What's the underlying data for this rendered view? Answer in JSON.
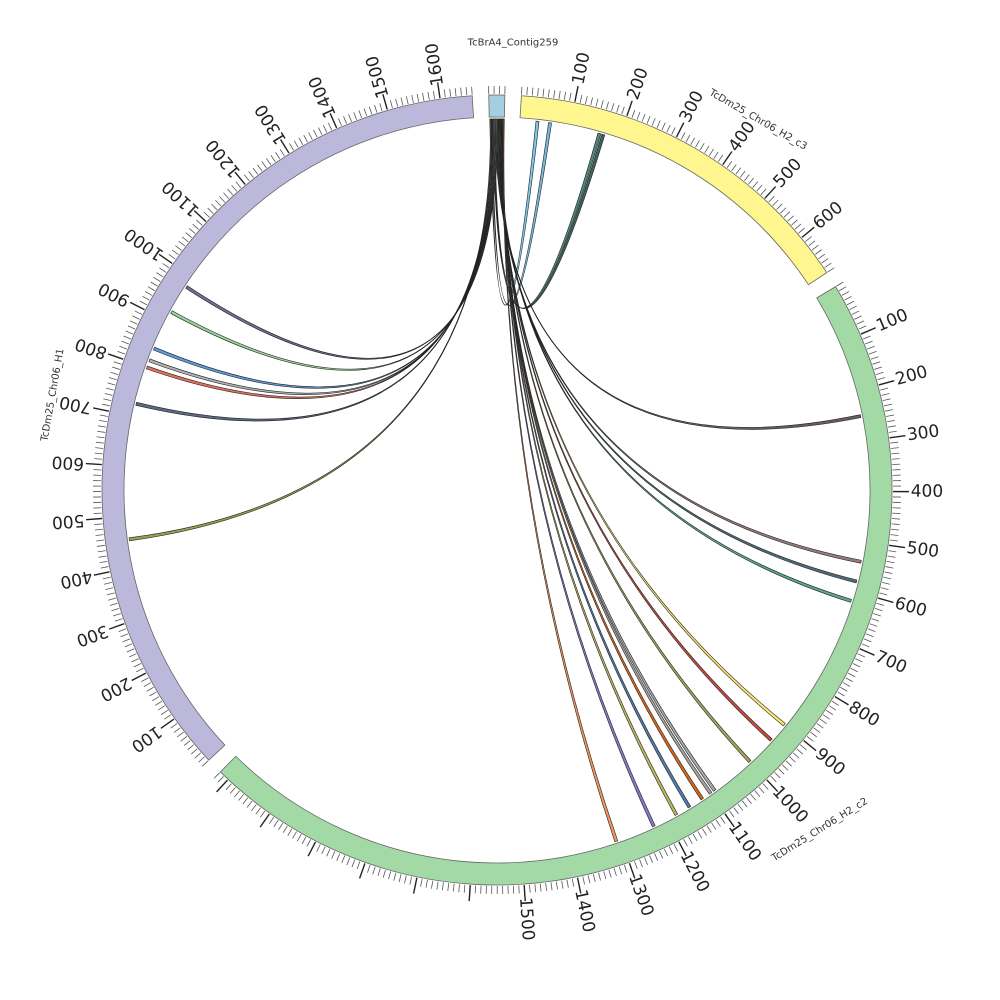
{
  "diagram": {
    "type": "circos",
    "chromosomes": [
      {
        "id": "contig",
        "name": "TcBrA4_Contig259",
        "color": "#a6cee3",
        "length": 30,
        "tick_labels": []
      },
      {
        "id": "h2c3",
        "name": "TcDm25_Chr06_H2_c3",
        "color": "#fff68f",
        "length": 680,
        "tick_labels": [
          "100",
          "200",
          "300",
          "400",
          "500",
          "600"
        ]
      },
      {
        "id": "h2c2",
        "name": "TcDm25_Chr06_H2_c2",
        "color": "#a3d9a5",
        "length": 2120,
        "tick_labels": [
          "100",
          "200",
          "300",
          "400",
          "500",
          "600",
          "700",
          "800",
          "900",
          "1000",
          "1100",
          "1200",
          "1300",
          "1400",
          "1500"
        ]
      },
      {
        "id": "h1",
        "name": "TcDm25_Chr06_H1",
        "color": "#bcb8dc",
        "length": 1660,
        "tick_labels": [
          "100",
          "200",
          "300",
          "400",
          "500",
          "600",
          "700",
          "800",
          "900",
          "1000",
          "1100",
          "1200",
          "1300",
          "1400",
          "1500",
          "1600"
        ]
      }
    ],
    "links": [
      {
        "from": 2,
        "to_chr": "h2c3",
        "to": 35,
        "color": "#6ec0e6"
      },
      {
        "from": 5,
        "to_chr": "h2c3",
        "to": 60,
        "color": "#6baed6"
      },
      {
        "from": 8,
        "to_chr": "h2c3",
        "to": 160,
        "color": "#3a7d6e"
      },
      {
        "from": 10,
        "to_chr": "h2c3",
        "to": 168,
        "color": "#2f4f4f"
      },
      {
        "from": 12,
        "to_chr": "h2c2",
        "to": 250,
        "color": "#5a4a4a"
      },
      {
        "from": 14,
        "to_chr": "h2c2",
        "to": 540,
        "color": "#8c6d6d"
      },
      {
        "from": 16,
        "to_chr": "h2c2",
        "to": 580,
        "color": "#3b5b6b"
      },
      {
        "from": 18,
        "to_chr": "h2c2",
        "to": 620,
        "color": "#4aa37a"
      },
      {
        "from": 20,
        "to_chr": "h2c2",
        "to": 900,
        "color": "#f5e663"
      },
      {
        "from": 21,
        "to_chr": "h2c2",
        "to": 940,
        "color": "#c0392b"
      },
      {
        "from": 22,
        "to_chr": "h2c2",
        "to": 1000,
        "color": "#9a9a4a"
      },
      {
        "from": 23,
        "to_chr": "h2c2",
        "to": 1090,
        "color": "#a0a0a0"
      },
      {
        "from": 24,
        "to_chr": "h2c2",
        "to": 1100,
        "color": "#9c9c9c"
      },
      {
        "from": 25,
        "to_chr": "h2c2",
        "to": 1120,
        "color": "#d35400"
      },
      {
        "from": 26,
        "to_chr": "h2c2",
        "to": 1150,
        "color": "#3b6ea5"
      },
      {
        "from": 27,
        "to_chr": "h2c2",
        "to": 1180,
        "color": "#b5b04a"
      },
      {
        "from": 28,
        "to_chr": "h2c2",
        "to": 1230,
        "color": "#7b68c4"
      },
      {
        "from": 29,
        "to_chr": "h2c2",
        "to": 1310,
        "color": "#f08a4b"
      },
      {
        "from": 3,
        "to_chr": "h1",
        "to": 455,
        "color": "#8b9a3c"
      },
      {
        "from": 6,
        "to_chr": "h1",
        "to": 725,
        "color": "#4a5a7a"
      },
      {
        "from": 9,
        "to_chr": "h1",
        "to": 800,
        "color": "#e0604a"
      },
      {
        "from": 11,
        "to_chr": "h1",
        "to": 815,
        "color": "#a8a8a8"
      },
      {
        "from": 13,
        "to_chr": "h1",
        "to": 840,
        "color": "#4f8fd6"
      },
      {
        "from": 15,
        "to_chr": "h1",
        "to": 920,
        "color": "#8fd18f"
      },
      {
        "from": 17,
        "to_chr": "h1",
        "to": 978,
        "color": "#6a5a8a"
      }
    ]
  }
}
